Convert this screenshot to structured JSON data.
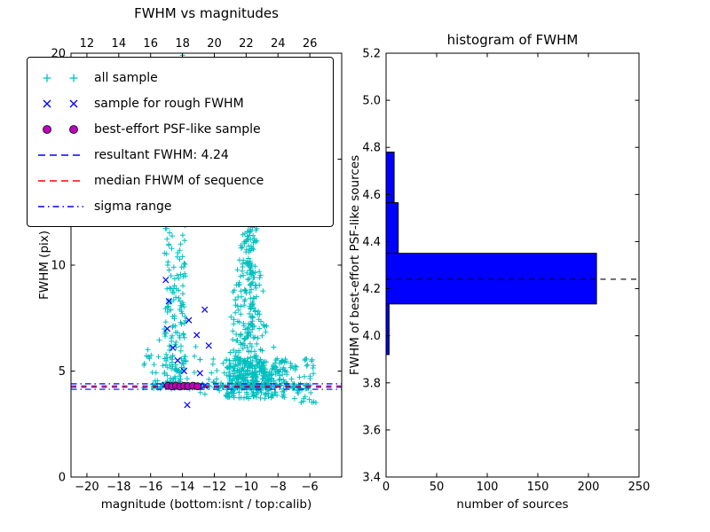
{
  "figure": {
    "bg": "#ffffff",
    "colors": {
      "cyan": "#00bfbf",
      "blue": "#0000ff",
      "magenta": "#bf00bf",
      "red": "#ff0000",
      "black": "#000000"
    }
  },
  "chart_data": [
    {
      "type": "scatter",
      "title": "FWHM vs magnitudes",
      "xlabel": "magnitude (bottom:isnt / top:calib)",
      "ylabel": "FWHM (pix)",
      "xlim": [
        -21,
        -4
      ],
      "ylim": [
        0,
        20
      ],
      "xticks_bottom": [
        -20,
        -18,
        -16,
        -14,
        -12,
        -10,
        -8,
        -6
      ],
      "xticks_top": [
        12,
        14,
        16,
        18,
        20,
        22,
        24,
        26
      ],
      "yticks": [
        0,
        5,
        10,
        15,
        20
      ],
      "grid": false,
      "legend_position": "upper left",
      "legend": [
        {
          "label": "all sample",
          "marker": "plus",
          "color": "#00bfbf"
        },
        {
          "label": "sample for rough FWHM",
          "marker": "x",
          "color": "#0000ff"
        },
        {
          "label": "best-effort PSF-like sample",
          "marker": "circle",
          "color": "#bf00bf"
        },
        {
          "label": "resultant FWHM: 4.24",
          "marker": "dashed-line",
          "color": "#0000ff"
        },
        {
          "label": "median FHWM of sequence",
          "marker": "dashed-line",
          "color": "#ff0000"
        },
        {
          "label": "sigma range",
          "marker": "dashdot-line",
          "color": "#0000ff"
        }
      ],
      "hlines": [
        {
          "y": 4.24,
          "style": "dashed",
          "color": "#0000ff",
          "name": "resultant-fwhm"
        },
        {
          "y": 4.3,
          "style": "dashed",
          "color": "#ff0000",
          "name": "median-fwhm"
        },
        {
          "y": 4.14,
          "style": "dashdot",
          "color": "#0000ff",
          "name": "sigma-low"
        },
        {
          "y": 4.4,
          "style": "dashdot",
          "color": "#0000ff",
          "name": "sigma-high"
        }
      ],
      "series": [
        {
          "name": "all sample",
          "marker": "plus",
          "color": "#00bfbf",
          "clusters": [
            {
              "dist": "band",
              "seed": 11,
              "n": 180,
              "x": [
                -15.15,
                -13.8
              ],
              "y": [
                4.2,
                13.0
              ],
              "pow": 1.7
            },
            {
              "dist": "uniform",
              "seed": 12,
              "n": 16,
              "x": [
                -16.6,
                -15.2
              ],
              "y": [
                3.9,
                6.5
              ]
            },
            {
              "dist": "uniform",
              "seed": 13,
              "n": 22,
              "x": [
                -13.8,
                -11.6
              ],
              "y": [
                3.9,
                6.2
              ]
            },
            {
              "dist": "funnel",
              "seed": 22,
              "n": 380,
              "cx": -9.8,
              "ybase": 4.2,
              "ytop": 12.4,
              "hw_base": 2.0,
              "hw_top": 0.35,
              "pow": 2.0
            },
            {
              "dist": "uniform",
              "seed": 23,
              "n": 260,
              "x": [
                -11.3,
                -7.4
              ],
              "y": [
                3.7,
                5.6
              ]
            },
            {
              "dist": "line",
              "seed": 33,
              "n": 130,
              "x": [
                -16.1,
                -5.8
              ],
              "y0": 4.3,
              "spread": 0.17
            },
            {
              "dist": "uniform",
              "seed": 44,
              "n": 45,
              "x": [
                -7.6,
                -5.6
              ],
              "y": [
                3.5,
                5.6
              ]
            },
            {
              "dist": "points",
              "points": [
                [
                  -14.0,
                  19.9
                ]
              ]
            }
          ]
        },
        {
          "name": "sample for rough FWHM",
          "marker": "x",
          "color": "#0000ff",
          "points": [
            [
              -15.05,
              9.3
            ],
            [
              -14.85,
              8.3
            ],
            [
              -14.95,
              7.0
            ],
            [
              -14.6,
              6.1
            ],
            [
              -14.3,
              5.5
            ],
            [
              -13.6,
              7.4
            ],
            [
              -13.1,
              6.7
            ],
            [
              -12.6,
              7.9
            ],
            [
              -12.35,
              6.2
            ],
            [
              -13.9,
              5.0
            ],
            [
              -12.9,
              4.9
            ],
            [
              -15.1,
              4.35
            ],
            [
              -14.7,
              4.3
            ],
            [
              -14.45,
              4.25
            ],
            [
              -14.1,
              4.3
            ],
            [
              -13.8,
              4.33
            ],
            [
              -13.5,
              4.27
            ],
            [
              -13.2,
              4.3
            ],
            [
              -12.95,
              4.26
            ],
            [
              -12.6,
              4.31
            ],
            [
              -13.7,
              3.4
            ]
          ]
        },
        {
          "name": "best-effort PSF-like sample",
          "marker": "circle",
          "color": "#bf00bf",
          "points": [
            [
              -14.9,
              4.3
            ],
            [
              -14.65,
              4.28
            ],
            [
              -14.4,
              4.31
            ],
            [
              -14.15,
              4.27
            ],
            [
              -13.9,
              4.3
            ],
            [
              -13.65,
              4.29
            ],
            [
              -13.35,
              4.31
            ],
            [
              -13.05,
              4.28
            ]
          ]
        }
      ]
    },
    {
      "type": "bar",
      "orientation": "horizontal",
      "title": "histogram of FWHM",
      "xlabel": "number of sources",
      "ylabel": "FWHM of best-effort PSF-like sources",
      "xlim": [
        0,
        250
      ],
      "ylim": [
        3.4,
        5.2
      ],
      "xticks": [
        0,
        50,
        100,
        150,
        200,
        250
      ],
      "yticks": [
        3.4,
        3.6,
        3.8,
        4.0,
        4.2,
        4.4,
        4.6,
        4.8,
        5.0,
        5.2
      ],
      "bar_color": "#0000ff",
      "bins": [
        {
          "from": 3.92,
          "to": 4.135,
          "count": 3
        },
        {
          "from": 4.135,
          "to": 4.35,
          "count": 208
        },
        {
          "from": 4.35,
          "to": 4.565,
          "count": 12
        },
        {
          "from": 4.565,
          "to": 4.78,
          "count": 8
        }
      ],
      "median_line": {
        "y": 4.24,
        "style": "dashed",
        "color": "#000000"
      }
    }
  ]
}
